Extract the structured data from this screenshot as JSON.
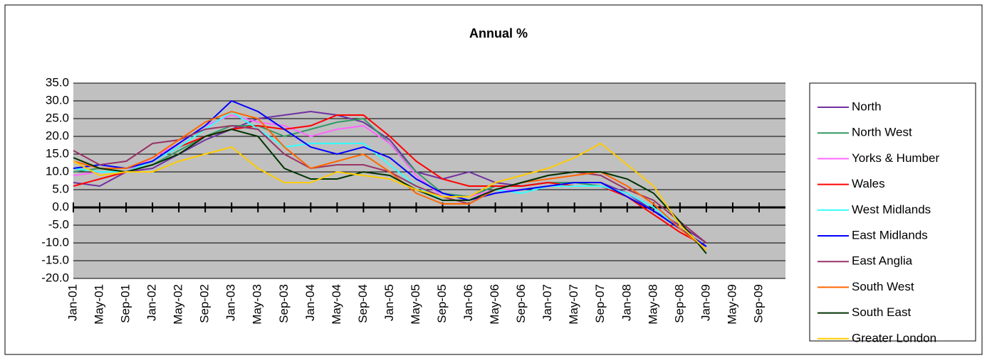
{
  "chart_data": {
    "type": "line",
    "title": "Annual %",
    "categories": [
      "Jan-01",
      "May-01",
      "Sep-01",
      "Jan-02",
      "May-02",
      "Sep-02",
      "Jan-03",
      "May-03",
      "Sep-03",
      "Jan-04",
      "May-04",
      "Sep-04",
      "Jan-05",
      "May-05",
      "Sep-05",
      "Jan-06",
      "May-06",
      "Sep-06",
      "Jan-07",
      "May-07",
      "Sep-07",
      "Jan-08",
      "May-08",
      "Sep-08",
      "Jan-09",
      "May-09",
      "Sep-09"
    ],
    "ylim": [
      -20,
      35
    ],
    "yticks": [
      {
        "value": -20,
        "label": "-20.0"
      },
      {
        "value": -15,
        "label": "-15.0"
      },
      {
        "value": -10,
        "label": "-10.0"
      },
      {
        "value": -5,
        "label": "-5.0"
      },
      {
        "value": 0,
        "label": "0.0"
      },
      {
        "value": 5,
        "label": "5.0"
      },
      {
        "value": 10,
        "label": "10.0"
      },
      {
        "value": 15,
        "label": "15.0"
      },
      {
        "value": 20,
        "label": "20.0"
      },
      {
        "value": 25,
        "label": "25.0"
      },
      {
        "value": 30,
        "label": "30.0"
      },
      {
        "value": 35,
        "label": "35.0"
      }
    ],
    "grid": true,
    "legend": "right",
    "series": [
      {
        "name": "North",
        "color": "#7030a0",
        "values": [
          7,
          6,
          10,
          11,
          15,
          19,
          22,
          25,
          26,
          27,
          26,
          24,
          19,
          10,
          8,
          10,
          7,
          6,
          7,
          7,
          7,
          4,
          -1,
          -5,
          -10,
          null,
          null
        ]
      },
      {
        "name": "North West",
        "color": "#339966",
        "values": [
          10,
          11,
          10,
          12,
          16,
          20,
          23,
          23,
          20,
          22,
          24,
          25,
          18,
          10,
          4,
          3,
          6,
          6,
          7,
          7,
          6,
          4,
          0,
          -6,
          -11,
          null,
          null
        ]
      },
      {
        "name": "Yorks & Humber",
        "color": "#ff66ff",
        "values": [
          9,
          10,
          10,
          14,
          18,
          23,
          26,
          24,
          23,
          20,
          22,
          23,
          18,
          9,
          3,
          3,
          5,
          5,
          6,
          6,
          6,
          4,
          0,
          -6,
          -11,
          null,
          null
        ]
      },
      {
        "name": "Wales",
        "color": "#ff0000",
        "values": [
          6,
          8,
          10,
          13,
          17,
          20,
          22,
          23,
          22,
          23,
          26,
          26,
          20,
          13,
          8,
          6,
          6,
          6,
          7,
          6,
          6,
          3,
          -2,
          -7,
          -11,
          null,
          null
        ]
      },
      {
        "name": "West Midlands",
        "color": "#33ffff",
        "values": [
          11,
          10,
          10,
          13,
          17,
          22,
          27,
          22,
          17,
          18,
          18,
          18,
          12,
          6,
          2,
          2,
          5,
          4,
          6,
          6,
          6,
          4,
          0,
          -6,
          -11,
          null,
          null
        ]
      },
      {
        "name": "East Midlands",
        "color": "#0000ff",
        "values": [
          11,
          12,
          11,
          13,
          18,
          23,
          30,
          27,
          22,
          17,
          15,
          17,
          14,
          8,
          4,
          2,
          4,
          5,
          6,
          7,
          7,
          3,
          -1,
          -6,
          -11,
          null,
          null
        ]
      },
      {
        "name": "East Anglia",
        "color": "#993366",
        "values": [
          16,
          12,
          13,
          18,
          19,
          22,
          23,
          22,
          15,
          11,
          12,
          12,
          10,
          6,
          3,
          1,
          5,
          7,
          9,
          10,
          9,
          5,
          2,
          -4,
          -10,
          null,
          null
        ]
      },
      {
        "name": "South West",
        "color": "#ff6600",
        "values": [
          13,
          11,
          11,
          14,
          19,
          24,
          27,
          25,
          17,
          11,
          13,
          15,
          10,
          4,
          1,
          1,
          5,
          7,
          8,
          9,
          10,
          6,
          1,
          -6,
          -12,
          null,
          null
        ]
      },
      {
        "name": "South East",
        "color": "#003300",
        "values": [
          14,
          11,
          10,
          12,
          15,
          20,
          22,
          20,
          11,
          8,
          8,
          10,
          9,
          5,
          2,
          2,
          5,
          7,
          9,
          10,
          10,
          8,
          4,
          -4,
          -13,
          null,
          null
        ]
      },
      {
        "name": "Greater London",
        "color": "#ffcc00",
        "values": [
          13,
          9,
          10,
          10,
          13,
          15,
          17,
          11,
          7,
          7,
          10,
          9,
          8,
          5,
          3,
          3,
          7,
          9,
          11,
          14,
          18,
          12,
          6,
          -5,
          -12,
          null,
          null
        ]
      }
    ]
  }
}
